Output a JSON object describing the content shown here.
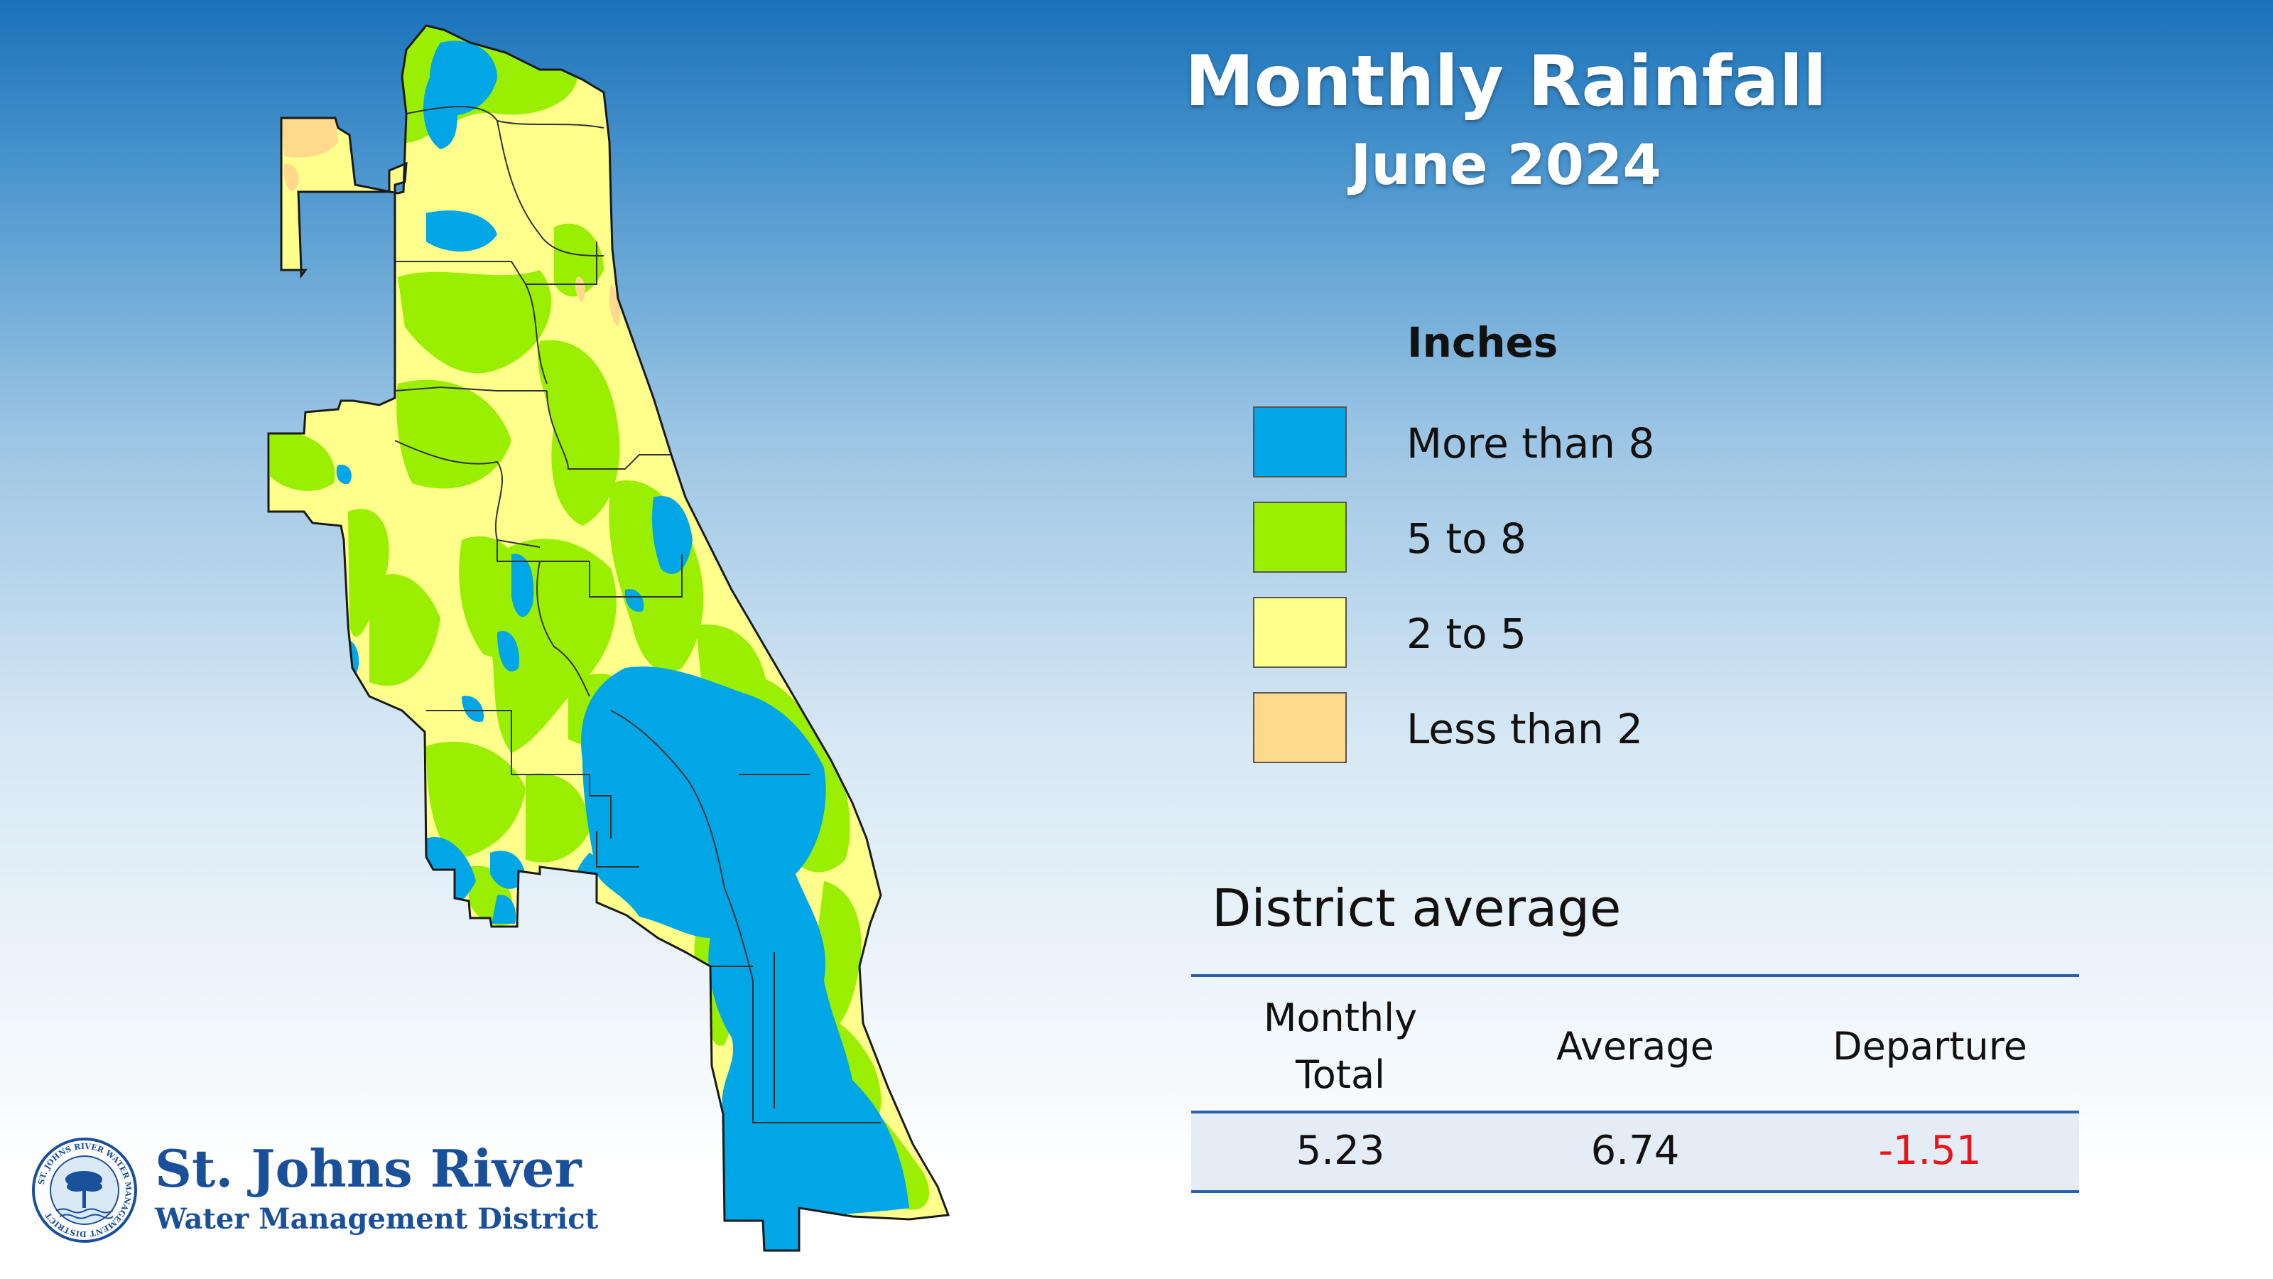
{
  "header": {
    "title": "Monthly Rainfall",
    "subtitle": "June 2024"
  },
  "legend": {
    "title": "Inches",
    "items": [
      {
        "label": "More than 8",
        "color": "#00a6e6"
      },
      {
        "label": "5 to 8",
        "color": "#9aee00"
      },
      {
        "label": "2 to 5",
        "color": "#ffff8c"
      },
      {
        "label": "Less than 2",
        "color": "#ffd98c"
      }
    ]
  },
  "district_average": {
    "title": "District average",
    "columns": [
      {
        "header_line1": "Monthly",
        "header_line2": "Total",
        "value": "5.23"
      },
      {
        "header_line1": "Average",
        "header_line2": "",
        "value": "6.74"
      },
      {
        "header_line1": "Departure",
        "header_line2": "",
        "value": "-1.51"
      }
    ],
    "negative_color": "#e8141c"
  },
  "logo": {
    "name": "St. Johns River",
    "subtitle": "Water Management District",
    "seal_text": "ST. JOHNS RIVER WATER MANAGEMENT DISTRICT",
    "color": "#1a4f9a"
  }
}
